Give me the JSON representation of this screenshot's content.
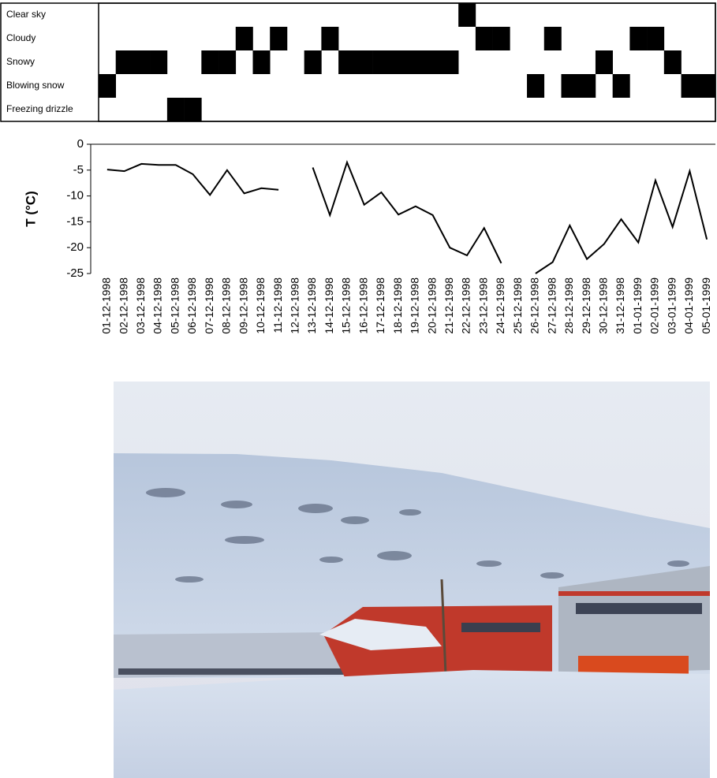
{
  "chart_data": [
    {
      "type": "grid",
      "color": "#000000",
      "series": [
        {
          "name": "Clear sky",
          "values": [
            0,
            0,
            0,
            0,
            0,
            0,
            0,
            0,
            0,
            0,
            0,
            0,
            0,
            0,
            0,
            0,
            0,
            0,
            0,
            0,
            0,
            1,
            0,
            0,
            0,
            0,
            0,
            0,
            0,
            0,
            0,
            0,
            0,
            0,
            0,
            0
          ]
        },
        {
          "name": "Cloudy",
          "values": [
            0,
            0,
            0,
            0,
            0,
            0,
            0,
            0,
            1,
            0,
            1,
            0,
            0,
            1,
            0,
            0,
            0,
            0,
            0,
            0,
            0,
            0,
            1,
            1,
            0,
            0,
            1,
            0,
            0,
            0,
            0,
            1,
            1,
            0,
            0,
            0
          ]
        },
        {
          "name": "Snowy",
          "values": [
            0,
            1,
            1,
            1,
            0,
            0,
            1,
            1,
            0,
            1,
            0,
            0,
            1,
            0,
            1,
            1,
            1,
            1,
            1,
            1,
            1,
            0,
            0,
            0,
            0,
            0,
            0,
            0,
            0,
            1,
            0,
            0,
            0,
            1,
            0,
            0
          ]
        },
        {
          "name": "Blowing snow",
          "values": [
            1,
            0,
            0,
            0,
            0,
            0,
            0,
            0,
            0,
            0,
            0,
            0,
            0,
            0,
            0,
            0,
            0,
            0,
            0,
            0,
            0,
            0,
            0,
            0,
            0,
            1,
            0,
            1,
            1,
            0,
            1,
            0,
            0,
            0,
            1,
            1
          ]
        },
        {
          "name": "Freezing drizzle",
          "values": [
            0,
            0,
            0,
            0,
            1,
            1,
            0,
            0,
            0,
            0,
            0,
            0,
            0,
            0,
            0,
            0,
            0,
            0,
            0,
            0,
            0,
            0,
            0,
            0,
            0,
            0,
            0,
            0,
            0,
            0,
            0,
            0,
            0,
            0,
            0,
            0
          ]
        }
      ]
    },
    {
      "type": "line",
      "ylabel": "T (°C)",
      "categories": [
        "01-12-1998",
        "02-12-1998",
        "03-12-1998",
        "04-12-1998",
        "05-12-1998",
        "06-12-1998",
        "07-12-1998",
        "08-12-1998",
        "09-12-1998",
        "10-12-1998",
        "11-12-1998",
        "12-12-1998",
        "13-12-1998",
        "14-12-1998",
        "15-12-1998",
        "16-12-1998",
        "17-12-1998",
        "18-12-1998",
        "19-12-1998",
        "20-12-1998",
        "21-12-1998",
        "22-12-1998",
        "23-12-1998",
        "24-12-1998",
        "25-12-1998",
        "26-12-1998",
        "27-12-1998",
        "28-12-1998",
        "29-12-1998",
        "30-12-1998",
        "31-12-1998",
        "01-01-1999",
        "02-01-1999",
        "03-01-1999",
        "04-01-1999",
        "05-01-1999"
      ],
      "series": [
        {
          "color": "#000000",
          "values": [
            -4.9,
            -5.2,
            -3.8,
            -4.0,
            -4.0,
            -5.8,
            -9.8,
            -5.0,
            -9.5,
            -8.5,
            -8.8,
            null,
            -4.5,
            -13.7,
            -3.5,
            -11.7,
            -9.3,
            -13.6,
            -12.0,
            -13.7,
            -20.0,
            -21.5,
            -16.2,
            -23.0,
            null,
            -25.0,
            -22.8,
            -15.7,
            -22.2,
            -19.3,
            -14.5,
            -19.0,
            -7.0,
            -16.0,
            -5.2,
            -18.4
          ]
        }
      ],
      "ylim": [
        -25,
        0
      ],
      "yticks": [
        0,
        -5,
        -10,
        -15,
        -20,
        -25
      ]
    }
  ]
}
